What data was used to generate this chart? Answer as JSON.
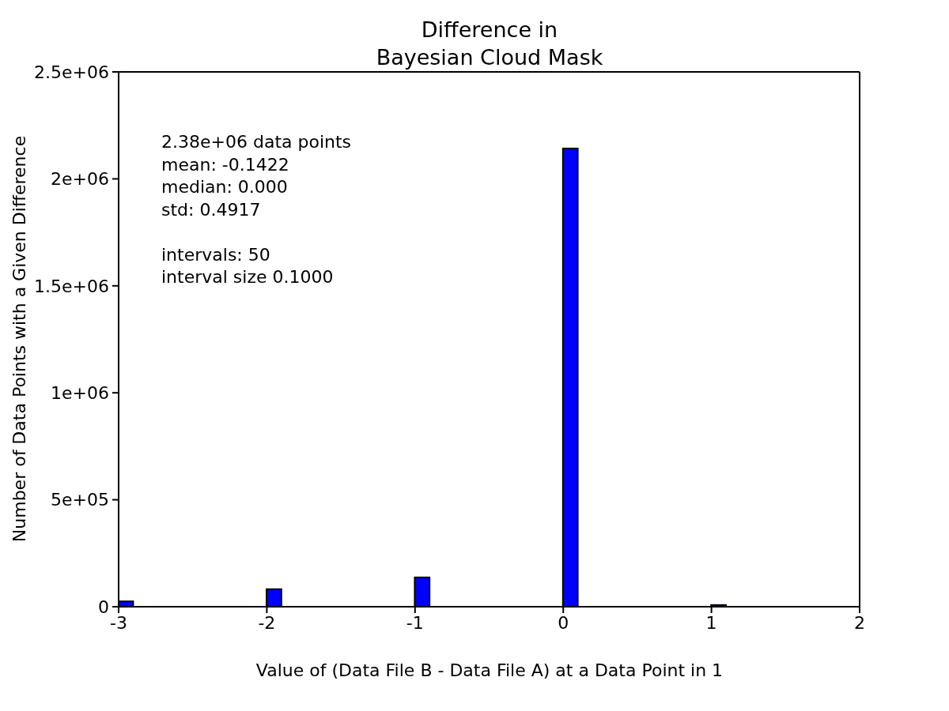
{
  "chart_data": {
    "type": "histogram",
    "title": "Difference in\nBayesian Cloud Mask",
    "xlabel": "Value of (Data File B - Data File A) at a Data Point in 1",
    "ylabel": "Number of Data Points with a Given Difference",
    "bins": [
      -3,
      -2.9,
      -2.8,
      -2.7,
      -2.6,
      -2.5,
      -2.4,
      -2.3,
      -2.2,
      -2.1,
      -2,
      -1.9,
      -1.8,
      -1.7,
      -1.6,
      -1.5,
      -1.4,
      -1.3,
      -1.2,
      -1.1,
      -1,
      -0.9,
      -0.8,
      -0.7,
      -0.6,
      -0.5,
      -0.4,
      -0.3,
      -0.2,
      -0.1,
      0,
      0.1,
      0.2,
      0.3,
      0.4,
      0.5,
      0.6,
      0.7,
      0.8,
      0.9,
      1,
      1.1,
      1.2,
      1.3,
      1.4,
      1.5,
      1.6,
      1.7,
      1.8,
      1.9,
      2
    ],
    "values": [
      25000,
      0,
      0,
      0,
      0,
      0,
      0,
      0,
      0,
      0,
      82000,
      0,
      0,
      0,
      0,
      0,
      0,
      0,
      0,
      0,
      137000,
      0,
      0,
      0,
      0,
      0,
      0,
      0,
      0,
      0,
      2142000,
      0,
      0,
      0,
      0,
      0,
      0,
      0,
      0,
      0,
      8000,
      0,
      0,
      0,
      0,
      0,
      0,
      0,
      0,
      0
    ],
    "color": "#0000ff",
    "xlim": [
      -3,
      2
    ],
    "xticks": [
      -3,
      -2,
      -1,
      0,
      1,
      2
    ],
    "ylim": [
      0,
      2500000
    ],
    "yticks": [
      0,
      {
        "value": 500000,
        "label": "5e+05"
      },
      {
        "value": 1000000,
        "label": "1e+06"
      },
      {
        "value": 1500000,
        "label": "1.5e+06"
      },
      {
        "value": 2000000,
        "label": "2e+06"
      },
      {
        "value": 2500000,
        "label": "2.5e+06"
      }
    ],
    "grid": false,
    "legend": false,
    "annotations": [
      "2.38e+06 data points\nmean: -0.1422\nmedian: 0.000\nstd: 0.4917",
      "intervals: 50\ninterval size 0.1000"
    ]
  }
}
